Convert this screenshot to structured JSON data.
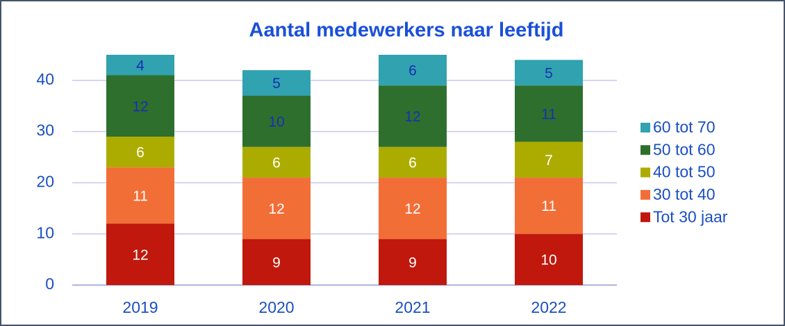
{
  "chart_data": {
    "type": "stacked_bar",
    "title": "Aantal medewerkers naar leeftijd",
    "categories": [
      "2019",
      "2020",
      "2021",
      "2022"
    ],
    "series": [
      {
        "name": "Tot 30 jaar",
        "color": "#c0180c",
        "label_color": "#ffffff",
        "values": [
          12,
          9,
          9,
          10
        ]
      },
      {
        "name": "30 tot 40",
        "color": "#f26e37",
        "label_color": "#ffffff",
        "values": [
          11,
          12,
          12,
          11
        ]
      },
      {
        "name": "40 tot 50",
        "color": "#acac00",
        "label_color": "#ffffff",
        "values": [
          6,
          6,
          6,
          7
        ]
      },
      {
        "name": "50 tot 60",
        "color": "#2e6f2e",
        "label_color": "#1a2fb0",
        "values": [
          12,
          10,
          12,
          11
        ]
      },
      {
        "name": "60 tot 70",
        "color": "#30a2b0",
        "label_color": "#1a2fb0",
        "values": [
          4,
          5,
          6,
          5
        ]
      }
    ],
    "ylim": [
      0,
      45
    ],
    "yticks": [
      0,
      10,
      20,
      30,
      40
    ],
    "grid": true,
    "legend": "right"
  }
}
